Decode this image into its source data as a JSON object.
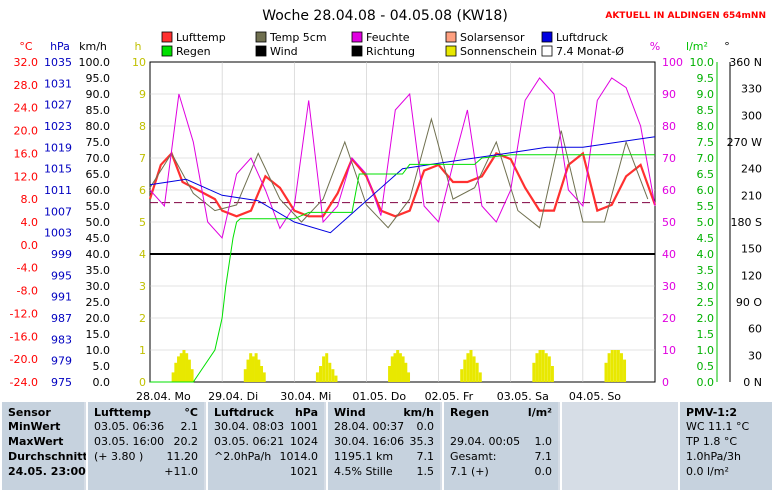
{
  "chart_data": {
    "type": "line",
    "title": "Woche 28.04.08 - 04.05.08 (KW18)",
    "badge": "AKTUELL IN ALDINGEN 654mNN",
    "units": {
      "c": "°C",
      "hpa": "hPa",
      "kmh": "km/h",
      "h": "h",
      "pct": "%",
      "lm2": "l/m²",
      "deg": "°"
    },
    "legend": [
      {
        "label": "Lufttemp",
        "color": "#ff3030"
      },
      {
        "label": "Temp 5cm",
        "color": "#707050"
      },
      {
        "label": "Feuchte",
        "color": "#e000e0"
      },
      {
        "label": "Solarsensor",
        "color": "#ffa080"
      },
      {
        "label": "Luftdruck",
        "color": "#0000e0"
      },
      {
        "label": "Regen",
        "color": "#00e000"
      },
      {
        "label": "Wind",
        "color": "#000000"
      },
      {
        "label": "Richtung",
        "color": "#000000"
      },
      {
        "label": "Sonnenschein",
        "color": "#e8e800"
      },
      {
        "label": "7.4 Monat-Ø",
        "color": "#ffffff"
      }
    ],
    "axes": {
      "temp": [
        "32.0",
        "28.0",
        "24.0",
        "20.0",
        "16.0",
        "12.0",
        "8.0",
        "4.0",
        "0.0",
        "-4.0",
        "-8.0",
        "-12.0",
        "-16.0",
        "-20.0",
        "-24.0"
      ],
      "hpa": [
        "1035",
        "1031",
        "1027",
        "1023",
        "1019",
        "1015",
        "1011",
        "1007",
        "1003",
        "999",
        "995",
        "991",
        "987",
        "983",
        "979",
        "975"
      ],
      "kmh": [
        "100.0",
        "95.0",
        "90.0",
        "85.0",
        "80.0",
        "75.0",
        "70.0",
        "65.0",
        "60.0",
        "55.0",
        "50.0",
        "45.0",
        "40.0",
        "35.0",
        "30.0",
        "25.0",
        "20.0",
        "15.0",
        "10.0",
        "5.0",
        "0.0"
      ],
      "h": [
        "10",
        "9",
        "8",
        "7",
        "6",
        "5",
        "4",
        "3",
        "2",
        "1",
        "0"
      ],
      "pct": [
        "100",
        "90",
        "80",
        "70",
        "60",
        "50",
        "40",
        "30",
        "20",
        "10",
        "0"
      ],
      "lm2": [
        "10.0",
        "9.5",
        "9.0",
        "8.5",
        "8.0",
        "7.5",
        "7.0",
        "6.5",
        "6.0",
        "5.5",
        "5.0",
        "4.5",
        "4.0",
        "3.5",
        "3.0",
        "2.5",
        "2.0",
        "1.5",
        "1.0",
        "0.5",
        "0.0"
      ],
      "deg": [
        "360 N",
        "330",
        "300",
        "270 W",
        "240",
        "210",
        "180 S",
        "150",
        "120",
        "90 O",
        "60",
        "30",
        "0 N"
      ]
    },
    "x_labels": [
      "28.04. Mo",
      "29.04. Di",
      "30.04. Mi",
      "01.05. Do",
      "02.05. Fr",
      "03.05. Sa",
      "04.05. So"
    ],
    "days": 7,
    "temp_axis": [
      -24,
      32
    ],
    "pct_axis": [
      0,
      100
    ],
    "lm2_axis": [
      0,
      10
    ],
    "monthly_mean_c": 7.4,
    "reference_line_kmh": 40,
    "series": [
      {
        "name": "Lufttemp",
        "color": "#ff3030",
        "axis": "temp",
        "width": 2.2,
        "x": [
          0,
          0.15,
          0.3,
          0.45,
          0.6,
          0.75,
          0.9,
          1.0,
          1.2,
          1.4,
          1.6,
          1.8,
          2.0,
          2.2,
          2.4,
          2.6,
          2.8,
          3.0,
          3.2,
          3.4,
          3.6,
          3.8,
          4.0,
          4.2,
          4.4,
          4.6,
          4.8,
          5.0,
          5.2,
          5.4,
          5.6,
          5.8,
          6.0,
          6.2,
          6.4,
          6.6,
          6.8,
          7.0
        ],
        "values": [
          8,
          14,
          16,
          11,
          10,
          9,
          8,
          6,
          5,
          6,
          12,
          10,
          6,
          5,
          5,
          9,
          15,
          12,
          6,
          5,
          6,
          13,
          14,
          11,
          11,
          12,
          16,
          15,
          10,
          6,
          6,
          14,
          16,
          6,
          7,
          12,
          14,
          7
        ]
      },
      {
        "name": "Temp 5cm",
        "color": "#707050",
        "axis": "temp",
        "width": 1,
        "x": [
          0,
          0.3,
          0.6,
          0.9,
          1.2,
          1.5,
          1.8,
          2.1,
          2.4,
          2.7,
          3.0,
          3.3,
          3.6,
          3.9,
          4.2,
          4.5,
          4.8,
          5.1,
          5.4,
          5.7,
          6.0,
          6.3,
          6.6,
          6.9
        ],
        "values": [
          10,
          16,
          9,
          6,
          7,
          16,
          8,
          4,
          8,
          18,
          7,
          3,
          8,
          22,
          8,
          10,
          18,
          6,
          3,
          20,
          4,
          4,
          18,
          8
        ]
      },
      {
        "name": "Feuchte",
        "color": "#e000e0",
        "axis": "pct",
        "width": 1,
        "x": [
          0,
          0.2,
          0.4,
          0.6,
          0.8,
          1.0,
          1.2,
          1.4,
          1.6,
          1.8,
          2.0,
          2.2,
          2.4,
          2.6,
          2.8,
          3.0,
          3.2,
          3.4,
          3.6,
          3.8,
          4.0,
          4.2,
          4.4,
          4.6,
          4.8,
          5.0,
          5.2,
          5.4,
          5.6,
          5.8,
          6.0,
          6.2,
          6.4,
          6.6,
          6.8,
          7.0
        ],
        "values": [
          60,
          55,
          90,
          75,
          50,
          45,
          65,
          70,
          60,
          48,
          55,
          88,
          50,
          55,
          70,
          65,
          52,
          85,
          90,
          55,
          50,
          68,
          85,
          55,
          50,
          60,
          88,
          95,
          90,
          60,
          55,
          88,
          95,
          92,
          80,
          55
        ]
      },
      {
        "name": "Luftdruck",
        "color": "#0000e0",
        "axis": "hpa",
        "width": 1,
        "x": [
          0,
          0.5,
          1.0,
          1.5,
          2.0,
          2.5,
          3.0,
          3.5,
          4.0,
          4.5,
          5.0,
          5.5,
          6.0,
          6.5,
          7.0
        ],
        "values": [
          1012,
          1013,
          1010,
          1009,
          1005,
          1003,
          1009,
          1015,
          1016,
          1017,
          1018,
          1019,
          1019,
          1020,
          1021
        ]
      },
      {
        "name": "Regen",
        "color": "#00e000",
        "axis": "lm2",
        "width": 1,
        "x": [
          0,
          0.6,
          0.75,
          0.9,
          1.0,
          1.05,
          1.15,
          1.2,
          1.25,
          2.0,
          2.2,
          2.8,
          2.9,
          3.5,
          3.6,
          4.5,
          4.6,
          5.0,
          7.0
        ],
        "values": [
          0,
          0,
          0.5,
          1.0,
          2.0,
          3.0,
          4.5,
          5.0,
          5.1,
          5.1,
          5.3,
          5.3,
          6.5,
          6.5,
          6.8,
          6.8,
          7.0,
          7.1,
          7.1
        ]
      }
    ],
    "sunshine_bars_h": [
      {
        "day": 0,
        "values": [
          0.3,
          0.6,
          0.8,
          0.9,
          1.0,
          0.9,
          0.7,
          0.4
        ]
      },
      {
        "day": 1,
        "values": [
          0.4,
          0.7,
          0.9,
          0.8,
          0.9,
          0.7,
          0.5,
          0.3
        ]
      },
      {
        "day": 2,
        "values": [
          0.3,
          0.5,
          0.8,
          0.9,
          0.6,
          0.4,
          0.2
        ]
      },
      {
        "day": 3,
        "values": [
          0.5,
          0.8,
          0.9,
          1.0,
          0.9,
          0.8,
          0.6,
          0.3
        ]
      },
      {
        "day": 4,
        "values": [
          0.4,
          0.7,
          0.9,
          1.0,
          0.8,
          0.6,
          0.3
        ]
      },
      {
        "day": 5,
        "values": [
          0.6,
          0.9,
          1.0,
          1.0,
          0.9,
          0.8,
          0.5
        ]
      },
      {
        "day": 6,
        "values": [
          0.6,
          0.9,
          1.0,
          1.0,
          1.0,
          0.9,
          0.7
        ]
      }
    ]
  },
  "table": {
    "sensor": {
      "head": "Sensor",
      "rows": [
        "MinWert",
        "MaxWert",
        "Durchschnitt",
        "24.05. 23:00"
      ]
    },
    "lufttemp": {
      "head": "Lufttemp",
      "unit": "°C",
      "rows": [
        [
          "03.05.  06:36",
          "2.1"
        ],
        [
          "03.05.  16:00",
          "20.2"
        ],
        [
          "(+ 3.80 )",
          "11.20"
        ],
        [
          "",
          "+11.0"
        ]
      ]
    },
    "luftdruck": {
      "head": "Luftdruck",
      "unit": "hPa",
      "rows": [
        [
          "30.04.  08:03",
          "1001"
        ],
        [
          "03.05.  06:21",
          "1024"
        ],
        [
          "^2.0hPa/h",
          "1014.0"
        ],
        [
          "",
          "1021"
        ]
      ]
    },
    "wind": {
      "head": "Wind",
      "unit": "km/h",
      "rows": [
        [
          "28.04.  00:37",
          "0.0"
        ],
        [
          "30.04.  16:06",
          "35.3"
        ],
        [
          "1195.1 km",
          "7.1"
        ],
        [
          "4.5% Stille",
          "1.5"
        ]
      ]
    },
    "regen": {
      "head": "Regen",
      "unit": "l/m²",
      "rows": [
        [
          "",
          ""
        ],
        [
          "29.04.  00:05",
          "1.0"
        ],
        [
          "Gesamt:",
          "7.1"
        ],
        [
          "7.1 (+)",
          "0.0"
        ]
      ]
    },
    "pmv": {
      "head": "PMV-1:2",
      "rows": [
        "WC 11.1 °C",
        "TP 1.8 °C",
        "1.0hPa/3h",
        "0.0 l/m²"
      ]
    }
  }
}
